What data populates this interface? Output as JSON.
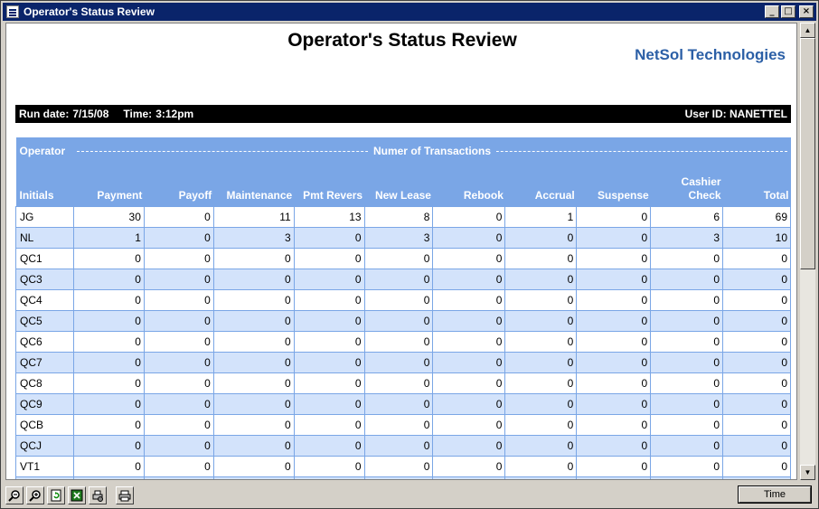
{
  "window": {
    "title": "Operator's Status Review"
  },
  "report": {
    "title": "Operator's Status Review",
    "brand": "NetSol Technologies",
    "run_date_label": "Run date:",
    "run_date": "7/15/08",
    "time_label": "Time:",
    "time": "3:12pm",
    "user_id_label": "User ID:",
    "user_id": "NANETTEL"
  },
  "table": {
    "operator_header": "Operator",
    "group_header": "Numer of Transactions",
    "columns": [
      "Initials",
      "Payment",
      "Payoff",
      "Maintenance",
      "Pmt Revers",
      "New Lease",
      "Rebook",
      "Accrual",
      "Suspense",
      "Cashier Check",
      "Total"
    ],
    "rows": [
      [
        "JG",
        "30",
        "0",
        "11",
        "13",
        "8",
        "0",
        "1",
        "0",
        "6",
        "69"
      ],
      [
        "NL",
        "1",
        "0",
        "3",
        "0",
        "3",
        "0",
        "0",
        "0",
        "3",
        "10"
      ],
      [
        "QC1",
        "0",
        "0",
        "0",
        "0",
        "0",
        "0",
        "0",
        "0",
        "0",
        "0"
      ],
      [
        "QC3",
        "0",
        "0",
        "0",
        "0",
        "0",
        "0",
        "0",
        "0",
        "0",
        "0"
      ],
      [
        "QC4",
        "0",
        "0",
        "0",
        "0",
        "0",
        "0",
        "0",
        "0",
        "0",
        "0"
      ],
      [
        "QC5",
        "0",
        "0",
        "0",
        "0",
        "0",
        "0",
        "0",
        "0",
        "0",
        "0"
      ],
      [
        "QC6",
        "0",
        "0",
        "0",
        "0",
        "0",
        "0",
        "0",
        "0",
        "0",
        "0"
      ],
      [
        "QC7",
        "0",
        "0",
        "0",
        "0",
        "0",
        "0",
        "0",
        "0",
        "0",
        "0"
      ],
      [
        "QC8",
        "0",
        "0",
        "0",
        "0",
        "0",
        "0",
        "0",
        "0",
        "0",
        "0"
      ],
      [
        "QC9",
        "0",
        "0",
        "0",
        "0",
        "0",
        "0",
        "0",
        "0",
        "0",
        "0"
      ],
      [
        "QCB",
        "0",
        "0",
        "0",
        "0",
        "0",
        "0",
        "0",
        "0",
        "0",
        "0"
      ],
      [
        "QCJ",
        "0",
        "0",
        "0",
        "0",
        "0",
        "0",
        "0",
        "0",
        "0",
        "0"
      ],
      [
        "VT1",
        "0",
        "0",
        "0",
        "0",
        "0",
        "0",
        "0",
        "0",
        "0",
        "0"
      ],
      [
        "",
        "",
        "",
        "",
        "",
        "",
        "",
        "",
        "",
        "",
        ""
      ]
    ]
  },
  "toolbar": {
    "buttons": [
      "zoom-out-icon",
      "zoom-in-icon",
      "refresh-icon",
      "excel-export-icon",
      "print-setup-icon",
      "print-icon"
    ],
    "time_button_label": "Time"
  },
  "colors": {
    "header_blue": "#7aa6e6",
    "alt_row": "#d3e3fb",
    "title_bar": "#0a246a",
    "brand": "#2b5fa6"
  }
}
